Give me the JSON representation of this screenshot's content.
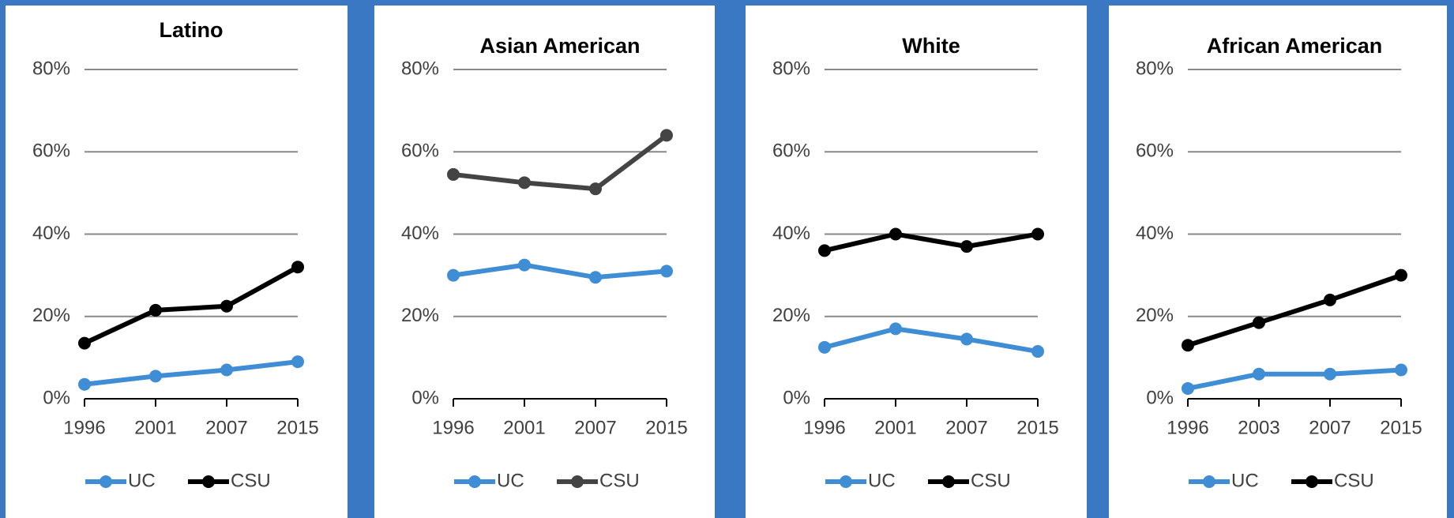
{
  "chart_data": [
    {
      "type": "line",
      "title": "Latino",
      "categories": [
        "1996",
        "2001",
        "2007",
        "2015"
      ],
      "series": [
        {
          "name": "UC",
          "color": "#3f8dd4",
          "values": [
            3.5,
            5.5,
            7,
            9
          ]
        },
        {
          "name": "CSU",
          "color": "#000000",
          "values": [
            13.5,
            21.5,
            22.5,
            32
          ]
        }
      ],
      "ylim": [
        0,
        80
      ],
      "yticks": [
        {
          "value": 0,
          "label": "0%"
        },
        {
          "value": 20,
          "label": "20%"
        },
        {
          "value": 40,
          "label": "40%"
        },
        {
          "value": 60,
          "label": "60%"
        },
        {
          "value": 80,
          "label": "80%"
        }
      ],
      "grid": true,
      "legend": "bottom"
    },
    {
      "type": "line",
      "title": "Asian American",
      "categories": [
        "1996",
        "2001",
        "2007",
        "2015"
      ],
      "series": [
        {
          "name": "UC",
          "color": "#3f8dd4",
          "values": [
            30,
            32.5,
            29.5,
            31
          ]
        },
        {
          "name": "CSU",
          "color": "#444444",
          "values": [
            54.5,
            52.5,
            51,
            64
          ]
        }
      ],
      "ylim": [
        0,
        80
      ],
      "yticks": [
        {
          "value": 0,
          "label": "0%"
        },
        {
          "value": 20,
          "label": "20%"
        },
        {
          "value": 40,
          "label": "40%"
        },
        {
          "value": 60,
          "label": "60%"
        },
        {
          "value": 80,
          "label": "80%"
        }
      ],
      "grid": true,
      "legend": "bottom"
    },
    {
      "type": "line",
      "title": "White",
      "categories": [
        "1996",
        "2001",
        "2007",
        "2015"
      ],
      "series": [
        {
          "name": "UC",
          "color": "#3f8dd4",
          "values": [
            12.5,
            17,
            14.5,
            11.5
          ]
        },
        {
          "name": "CSU",
          "color": "#000000",
          "values": [
            36,
            40,
            37,
            40
          ]
        }
      ],
      "ylim": [
        0,
        80
      ],
      "yticks": [
        {
          "value": 0,
          "label": "0%"
        },
        {
          "value": 20,
          "label": "20%"
        },
        {
          "value": 40,
          "label": "40%"
        },
        {
          "value": 60,
          "label": "60%"
        },
        {
          "value": 80,
          "label": "80%"
        }
      ],
      "grid": true,
      "legend": "bottom"
    },
    {
      "type": "line",
      "title": "African American",
      "categories": [
        "1996",
        "2003",
        "2007",
        "2015"
      ],
      "series": [
        {
          "name": "UC",
          "color": "#3f8dd4",
          "values": [
            2.5,
            6,
            6,
            7
          ]
        },
        {
          "name": "CSU",
          "color": "#000000",
          "values": [
            13,
            18.5,
            24,
            30
          ]
        }
      ],
      "ylim": [
        0,
        80
      ],
      "yticks": [
        {
          "value": 0,
          "label": "0%"
        },
        {
          "value": 20,
          "label": "20%"
        },
        {
          "value": 40,
          "label": "40%"
        },
        {
          "value": 60,
          "label": "60%"
        },
        {
          "value": 80,
          "label": "80%"
        }
      ],
      "grid": true,
      "legend": "bottom"
    }
  ]
}
